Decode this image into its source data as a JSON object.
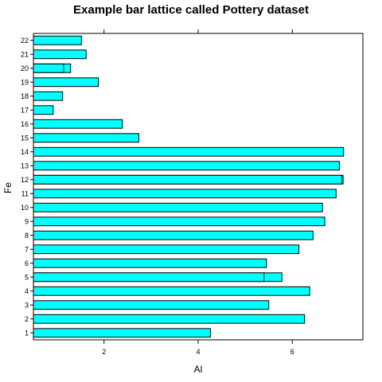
{
  "chart_data": {
    "type": "bar",
    "orientation": "horizontal",
    "title": "Example bar lattice called Pottery dataset",
    "xlabel": "Al",
    "ylabel": "Fe",
    "xlim": [
      0.5,
      7.5
    ],
    "x_ticks": [
      2,
      4,
      6
    ],
    "categories": [
      "1",
      "2",
      "3",
      "4",
      "5",
      "6",
      "7",
      "8",
      "9",
      "10",
      "11",
      "12",
      "13",
      "14",
      "15",
      "16",
      "17",
      "18",
      "19",
      "20",
      "21",
      "22"
    ],
    "bars": [
      {
        "category": "1",
        "values": [
          4.26
        ]
      },
      {
        "category": "2",
        "values": [
          6.26
        ]
      },
      {
        "category": "3",
        "values": [
          5.5
        ]
      },
      {
        "category": "4",
        "values": [
          6.37
        ]
      },
      {
        "category": "5",
        "values": [
          5.78,
          5.4
        ]
      },
      {
        "category": "6",
        "values": [
          5.45
        ]
      },
      {
        "category": "7",
        "values": [
          6.14
        ]
      },
      {
        "category": "8",
        "values": [
          6.44
        ]
      },
      {
        "category": "9",
        "values": [
          6.69
        ]
      },
      {
        "category": "10",
        "values": [
          6.64
        ]
      },
      {
        "category": "11",
        "values": [
          6.93
        ]
      },
      {
        "category": "12",
        "values": [
          7.08,
          7.05
        ]
      },
      {
        "category": "13",
        "values": [
          7.0
        ]
      },
      {
        "category": "14",
        "values": [
          7.09
        ]
      },
      {
        "category": "15",
        "values": [
          2.74
        ]
      },
      {
        "category": "16",
        "values": [
          2.39
        ]
      },
      {
        "category": "17",
        "values": [
          0.92
        ]
      },
      {
        "category": "18",
        "values": [
          1.12
        ]
      },
      {
        "category": "19",
        "values": [
          1.88
        ]
      },
      {
        "category": "20",
        "values": [
          1.29,
          1.14
        ]
      },
      {
        "category": "21",
        "values": [
          1.62
        ]
      },
      {
        "category": "22",
        "values": [
          1.52
        ]
      }
    ],
    "bar_color": "#00ffff",
    "bar_stroke": "#000000",
    "grid": false,
    "legend": "none"
  }
}
